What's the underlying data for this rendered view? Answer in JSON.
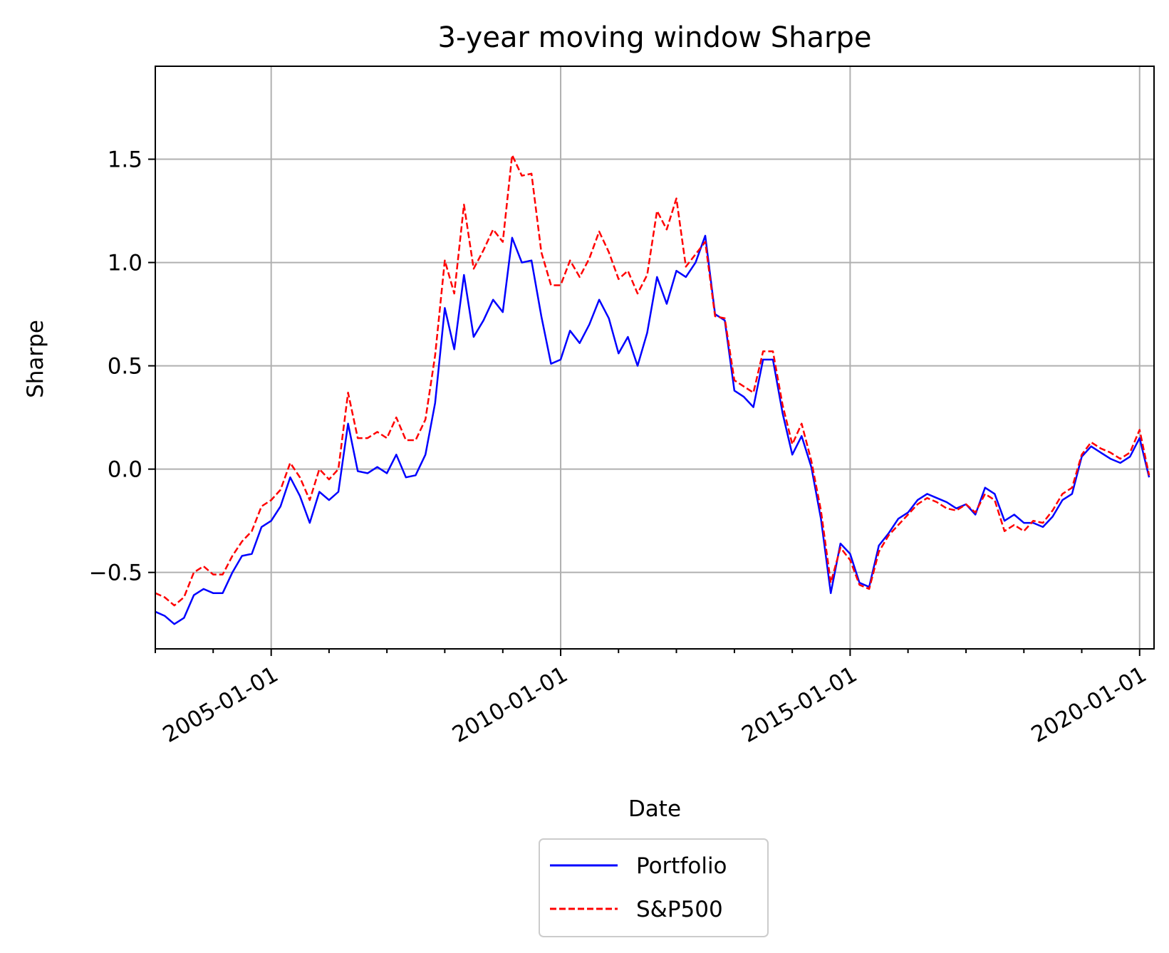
{
  "chart_data": {
    "type": "line",
    "title": "3-year moving window Sharpe",
    "xlabel": "Date",
    "ylabel": "Sharpe",
    "xlim": [
      "2003-01-01",
      "2020-04-01"
    ],
    "ylim": [
      -0.87,
      1.95
    ],
    "x_ticks": [
      "2005-01-01",
      "2010-01-01",
      "2015-01-01",
      "2020-01-01"
    ],
    "y_ticks": [
      -0.5,
      0.0,
      0.5,
      1.0,
      1.5
    ],
    "y_tick_labels": [
      "−0.5",
      "0.0",
      "0.5",
      "1.0",
      "1.5"
    ],
    "grid": true,
    "legend_position": "below-center",
    "series": [
      {
        "name": "Portfolio",
        "color": "#0000ff",
        "style": "solid",
        "points": [
          [
            "2003-01-01",
            -0.69
          ],
          [
            "2003-03-01",
            -0.71
          ],
          [
            "2003-05-01",
            -0.75
          ],
          [
            "2003-07-01",
            -0.72
          ],
          [
            "2003-09-01",
            -0.61
          ],
          [
            "2003-11-01",
            -0.58
          ],
          [
            "2004-01-01",
            -0.6
          ],
          [
            "2004-03-01",
            -0.6
          ],
          [
            "2004-05-01",
            -0.5
          ],
          [
            "2004-07-01",
            -0.42
          ],
          [
            "2004-09-01",
            -0.41
          ],
          [
            "2004-11-01",
            -0.28
          ],
          [
            "2005-01-01",
            -0.25
          ],
          [
            "2005-03-01",
            -0.18
          ],
          [
            "2005-05-01",
            -0.04
          ],
          [
            "2005-07-01",
            -0.13
          ],
          [
            "2005-09-01",
            -0.26
          ],
          [
            "2005-11-01",
            -0.11
          ],
          [
            "2006-01-01",
            -0.15
          ],
          [
            "2006-03-01",
            -0.11
          ],
          [
            "2006-05-01",
            0.22
          ],
          [
            "2006-07-01",
            -0.01
          ],
          [
            "2006-09-01",
            -0.02
          ],
          [
            "2006-11-01",
            0.01
          ],
          [
            "2007-01-01",
            -0.02
          ],
          [
            "2007-03-01",
            0.07
          ],
          [
            "2007-05-01",
            -0.04
          ],
          [
            "2007-07-01",
            -0.03
          ],
          [
            "2007-09-01",
            0.07
          ],
          [
            "2007-11-01",
            0.32
          ],
          [
            "2008-01-01",
            0.78
          ],
          [
            "2008-03-01",
            0.58
          ],
          [
            "2008-05-01",
            0.94
          ],
          [
            "2008-07-01",
            0.64
          ],
          [
            "2008-09-01",
            0.72
          ],
          [
            "2008-11-01",
            0.82
          ],
          [
            "2009-01-01",
            0.76
          ],
          [
            "2009-03-01",
            1.12
          ],
          [
            "2009-05-01",
            1.0
          ],
          [
            "2009-07-01",
            1.01
          ],
          [
            "2009-09-01",
            0.74
          ],
          [
            "2009-11-01",
            0.51
          ],
          [
            "2010-01-01",
            0.53
          ],
          [
            "2010-03-01",
            0.67
          ],
          [
            "2010-05-01",
            0.61
          ],
          [
            "2010-07-01",
            0.7
          ],
          [
            "2010-09-01",
            0.82
          ],
          [
            "2010-11-01",
            0.73
          ],
          [
            "2011-01-01",
            0.56
          ],
          [
            "2011-03-01",
            0.64
          ],
          [
            "2011-05-01",
            0.5
          ],
          [
            "2011-07-01",
            0.66
          ],
          [
            "2011-09-01",
            0.93
          ],
          [
            "2011-11-01",
            0.8
          ],
          [
            "2012-01-01",
            0.96
          ],
          [
            "2012-03-01",
            0.93
          ],
          [
            "2012-05-01",
            1.0
          ],
          [
            "2012-07-01",
            1.13
          ],
          [
            "2012-09-01",
            0.75
          ],
          [
            "2012-11-01",
            0.72
          ],
          [
            "2013-01-01",
            0.38
          ],
          [
            "2013-03-01",
            0.35
          ],
          [
            "2013-05-01",
            0.3
          ],
          [
            "2013-07-01",
            0.53
          ],
          [
            "2013-09-01",
            0.53
          ],
          [
            "2013-11-01",
            0.27
          ],
          [
            "2014-01-01",
            0.07
          ],
          [
            "2014-03-01",
            0.16
          ],
          [
            "2014-05-01",
            0.01
          ],
          [
            "2014-07-01",
            -0.24
          ],
          [
            "2014-09-01",
            -0.6
          ],
          [
            "2014-11-01",
            -0.36
          ],
          [
            "2015-01-01",
            -0.41
          ],
          [
            "2015-03-01",
            -0.55
          ],
          [
            "2015-05-01",
            -0.57
          ],
          [
            "2015-07-01",
            -0.37
          ],
          [
            "2015-09-01",
            -0.31
          ],
          [
            "2015-11-01",
            -0.24
          ],
          [
            "2016-01-01",
            -0.21
          ],
          [
            "2016-03-01",
            -0.15
          ],
          [
            "2016-05-01",
            -0.12
          ],
          [
            "2016-07-01",
            -0.14
          ],
          [
            "2016-09-01",
            -0.16
          ],
          [
            "2016-11-01",
            -0.19
          ],
          [
            "2017-01-01",
            -0.17
          ],
          [
            "2017-03-01",
            -0.22
          ],
          [
            "2017-05-01",
            -0.09
          ],
          [
            "2017-07-01",
            -0.12
          ],
          [
            "2017-09-01",
            -0.25
          ],
          [
            "2017-11-01",
            -0.22
          ],
          [
            "2018-01-01",
            -0.26
          ],
          [
            "2018-03-01",
            -0.26
          ],
          [
            "2018-05-01",
            -0.28
          ],
          [
            "2018-07-01",
            -0.23
          ],
          [
            "2018-09-01",
            -0.15
          ],
          [
            "2018-11-01",
            -0.12
          ],
          [
            "2019-01-01",
            0.06
          ],
          [
            "2019-03-01",
            0.11
          ],
          [
            "2019-05-01",
            0.08
          ],
          [
            "2019-07-01",
            0.05
          ],
          [
            "2019-09-01",
            0.03
          ],
          [
            "2019-11-01",
            0.06
          ],
          [
            "2020-01-01",
            0.15
          ],
          [
            "2020-03-01",
            -0.04
          ]
        ]
      },
      {
        "name": "S&P500",
        "color": "#ff0000",
        "style": "dashed",
        "points": [
          [
            "2003-01-01",
            -0.6
          ],
          [
            "2003-03-01",
            -0.62
          ],
          [
            "2003-05-01",
            -0.66
          ],
          [
            "2003-07-01",
            -0.62
          ],
          [
            "2003-09-01",
            -0.5
          ],
          [
            "2003-11-01",
            -0.47
          ],
          [
            "2004-01-01",
            -0.51
          ],
          [
            "2004-03-01",
            -0.51
          ],
          [
            "2004-05-01",
            -0.42
          ],
          [
            "2004-07-01",
            -0.35
          ],
          [
            "2004-09-01",
            -0.3
          ],
          [
            "2004-11-01",
            -0.18
          ],
          [
            "2005-01-01",
            -0.15
          ],
          [
            "2005-03-01",
            -0.1
          ],
          [
            "2005-05-01",
            0.03
          ],
          [
            "2005-07-01",
            -0.04
          ],
          [
            "2005-09-01",
            -0.15
          ],
          [
            "2005-11-01",
            0.0
          ],
          [
            "2006-01-01",
            -0.05
          ],
          [
            "2006-03-01",
            0.0
          ],
          [
            "2006-05-01",
            0.37
          ],
          [
            "2006-07-01",
            0.15
          ],
          [
            "2006-09-01",
            0.15
          ],
          [
            "2006-11-01",
            0.18
          ],
          [
            "2007-01-01",
            0.15
          ],
          [
            "2007-03-01",
            0.25
          ],
          [
            "2007-05-01",
            0.14
          ],
          [
            "2007-07-01",
            0.14
          ],
          [
            "2007-09-01",
            0.24
          ],
          [
            "2007-11-01",
            0.55
          ],
          [
            "2008-01-01",
            1.01
          ],
          [
            "2008-03-01",
            0.85
          ],
          [
            "2008-05-01",
            1.28
          ],
          [
            "2008-07-01",
            0.97
          ],
          [
            "2008-09-01",
            1.06
          ],
          [
            "2008-11-01",
            1.16
          ],
          [
            "2009-01-01",
            1.1
          ],
          [
            "2009-03-01",
            1.52
          ],
          [
            "2009-05-01",
            1.42
          ],
          [
            "2009-07-01",
            1.43
          ],
          [
            "2009-09-01",
            1.05
          ],
          [
            "2009-11-01",
            0.89
          ],
          [
            "2010-01-01",
            0.89
          ],
          [
            "2010-03-01",
            1.01
          ],
          [
            "2010-05-01",
            0.93
          ],
          [
            "2010-07-01",
            1.02
          ],
          [
            "2010-09-01",
            1.15
          ],
          [
            "2010-11-01",
            1.05
          ],
          [
            "2011-01-01",
            0.92
          ],
          [
            "2011-03-01",
            0.96
          ],
          [
            "2011-05-01",
            0.85
          ],
          [
            "2011-07-01",
            0.94
          ],
          [
            "2011-09-01",
            1.25
          ],
          [
            "2011-11-01",
            1.16
          ],
          [
            "2012-01-01",
            1.31
          ],
          [
            "2012-03-01",
            0.98
          ],
          [
            "2012-05-01",
            1.04
          ],
          [
            "2012-07-01",
            1.1
          ],
          [
            "2012-09-01",
            0.74
          ],
          [
            "2012-11-01",
            0.73
          ],
          [
            "2013-01-01",
            0.43
          ],
          [
            "2013-03-01",
            0.4
          ],
          [
            "2013-05-01",
            0.37
          ],
          [
            "2013-07-01",
            0.57
          ],
          [
            "2013-09-01",
            0.57
          ],
          [
            "2013-11-01",
            0.31
          ],
          [
            "2014-01-01",
            0.12
          ],
          [
            "2014-03-01",
            0.22
          ],
          [
            "2014-05-01",
            0.04
          ],
          [
            "2014-07-01",
            -0.2
          ],
          [
            "2014-09-01",
            -0.55
          ],
          [
            "2014-11-01",
            -0.38
          ],
          [
            "2015-01-01",
            -0.44
          ],
          [
            "2015-03-01",
            -0.56
          ],
          [
            "2015-05-01",
            -0.58
          ],
          [
            "2015-07-01",
            -0.4
          ],
          [
            "2015-09-01",
            -0.32
          ],
          [
            "2015-11-01",
            -0.27
          ],
          [
            "2016-01-01",
            -0.22
          ],
          [
            "2016-03-01",
            -0.17
          ],
          [
            "2016-05-01",
            -0.14
          ],
          [
            "2016-07-01",
            -0.16
          ],
          [
            "2016-09-01",
            -0.19
          ],
          [
            "2016-11-01",
            -0.2
          ],
          [
            "2017-01-01",
            -0.17
          ],
          [
            "2017-03-01",
            -0.21
          ],
          [
            "2017-05-01",
            -0.12
          ],
          [
            "2017-07-01",
            -0.15
          ],
          [
            "2017-09-01",
            -0.3
          ],
          [
            "2017-11-01",
            -0.27
          ],
          [
            "2018-01-01",
            -0.3
          ],
          [
            "2018-03-01",
            -0.25
          ],
          [
            "2018-05-01",
            -0.26
          ],
          [
            "2018-07-01",
            -0.2
          ],
          [
            "2018-09-01",
            -0.12
          ],
          [
            "2018-11-01",
            -0.09
          ],
          [
            "2019-01-01",
            0.07
          ],
          [
            "2019-03-01",
            0.13
          ],
          [
            "2019-05-01",
            0.1
          ],
          [
            "2019-07-01",
            0.08
          ],
          [
            "2019-09-01",
            0.05
          ],
          [
            "2019-11-01",
            0.08
          ],
          [
            "2020-01-01",
            0.19
          ],
          [
            "2020-03-01",
            -0.03
          ]
        ]
      }
    ]
  }
}
